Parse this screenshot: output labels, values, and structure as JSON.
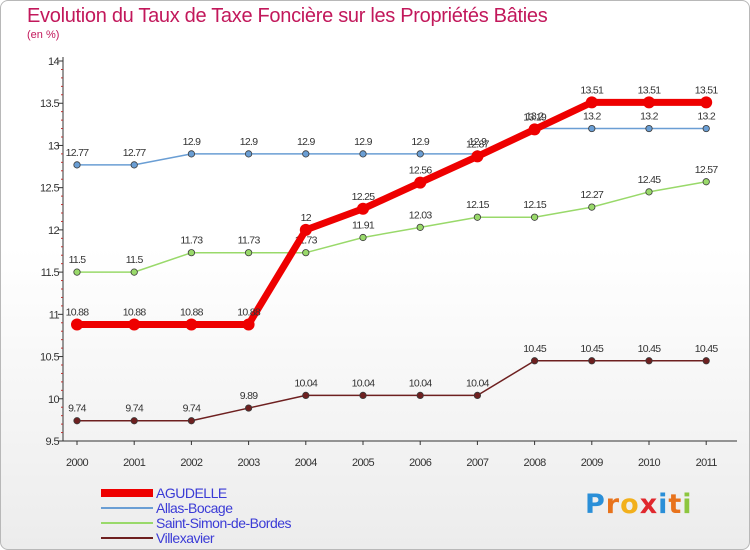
{
  "title": "Evolution du Taux de Taxe Foncière sur les Propriétés Bâties",
  "subtitle": "(en %)",
  "logo": {
    "text": "Proxiti",
    "colors": [
      "#2a8fd8",
      "#e8731c",
      "#f2b01c",
      "#e0282e",
      "#2a8fd8",
      "#e8731c",
      "#8dc63f"
    ]
  },
  "chart_data": {
    "type": "line",
    "title": "Evolution du Taux de Taxe Foncière sur les Propriétés Bâties",
    "ylabel": "(en %)",
    "ylim": [
      9.5,
      14
    ],
    "yticks": [
      "9.5",
      "10",
      "10.5",
      "11",
      "11.5",
      "12",
      "12.5",
      "13",
      "13.5",
      "14"
    ],
    "x": [
      "2000",
      "2001",
      "2002",
      "2003",
      "2004",
      "2005",
      "2006",
      "2007",
      "2008",
      "2009",
      "2010",
      "2011"
    ],
    "grid": false,
    "legend": "bottom-left",
    "series": [
      {
        "name": "Villexavier",
        "color": "#6e2020",
        "values": [
          9.74,
          9.74,
          9.74,
          9.89,
          10.04,
          10.04,
          10.04,
          10.04,
          10.45,
          10.45,
          10.45,
          10.45
        ],
        "labels": [
          "9.74",
          "9.74",
          "9.74",
          "9.89",
          "10.04",
          "10.04",
          "10.04",
          "10.04",
          "10.45",
          "10.45",
          "10.45",
          "10.45"
        ]
      },
      {
        "name": "Saint-Simon-de-Bordes",
        "color": "#99d96a",
        "values": [
          11.5,
          11.5,
          11.73,
          11.73,
          11.73,
          11.91,
          12.03,
          12.15,
          12.15,
          12.27,
          12.45,
          12.57
        ],
        "labels": [
          "11.5",
          "11.5",
          "11.73",
          "11.73",
          "11.73",
          "11.91",
          "12.03",
          "12.15",
          "12.15",
          "12.27",
          "12.45",
          "12.57"
        ]
      },
      {
        "name": "Allas-Bocage",
        "color": "#6a9ed4",
        "values": [
          12.77,
          12.77,
          12.9,
          12.9,
          12.9,
          12.9,
          12.9,
          12.9,
          13.2,
          13.2,
          13.2,
          13.2
        ],
        "labels": [
          "12.77",
          "12.77",
          "12.9",
          "12.9",
          "12.9",
          "12.9",
          "12.9",
          "12.9",
          "13.2",
          "13.2",
          "13.2",
          "13.2"
        ]
      },
      {
        "name": "AGUDELLE",
        "color": "#ee0000",
        "values": [
          10.88,
          10.88,
          10.88,
          10.88,
          12,
          12.25,
          12.56,
          12.87,
          13.19,
          13.51,
          13.51,
          13.51
        ],
        "labels": [
          "10.88",
          "10.88",
          "10.88",
          "10.88",
          "12",
          "12.25",
          "12.56",
          "12.87",
          "13.19",
          "13.51",
          "13.51",
          "13.51"
        ]
      }
    ],
    "legend_order": [
      "AGUDELLE",
      "Allas-Bocage",
      "Saint-Simon-de-Bordes",
      "Villexavier"
    ]
  }
}
